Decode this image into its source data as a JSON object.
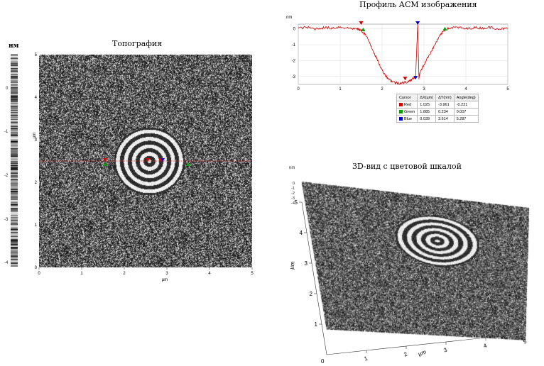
{
  "chart_data": [
    {
      "type": "heatmap",
      "title": "Топография",
      "xlabel": "µm",
      "ylabel": "µm",
      "xlim": [
        0,
        5
      ],
      "ylim": [
        0,
        5
      ],
      "x_ticks": [
        "0",
        "1",
        "2",
        "3",
        "4",
        "5"
      ],
      "y_ticks": [
        "0",
        "1",
        "2",
        "3",
        "4",
        "5"
      ],
      "colorbar": {
        "unit": "нм",
        "ticks": [
          "0",
          "-1",
          "-2",
          "-3",
          "-4"
        ]
      },
      "profile_line_y": 2.5,
      "markers": [
        {
          "color": "#d00000",
          "x": 1.55,
          "y": 2.5
        },
        {
          "color": "#00a000",
          "x": 1.55,
          "y": 2.4
        },
        {
          "color": "#d00000",
          "x": 2.55,
          "y": 2.5
        },
        {
          "color": "#d00000",
          "x": 2.85,
          "y": 2.5
        },
        {
          "color": "#0000c0",
          "x": 2.9,
          "y": 2.5
        },
        {
          "color": "#00a000",
          "x": 3.5,
          "y": 2.4
        }
      ]
    },
    {
      "type": "line",
      "title": "Профиль АСМ изображения",
      "xlabel": "µm",
      "ylabel": "nm",
      "xlim": [
        0,
        5
      ],
      "ylim": [
        -3.5,
        0.3
      ],
      "x_ticks": [
        "0",
        "1",
        "2",
        "3",
        "4",
        "5"
      ],
      "y_ticks": [
        "0",
        "-1",
        "-2",
        "-3"
      ],
      "series": [
        {
          "color": "#d00000",
          "x": [
            0,
            0.2,
            0.4,
            0.6,
            0.8,
            1.0,
            1.2,
            1.4,
            1.5,
            1.6,
            1.7,
            1.8,
            1.9,
            2.0,
            2.1,
            2.2,
            2.3,
            2.4,
            2.5,
            2.6,
            2.7,
            2.8,
            2.85,
            2.88,
            2.9,
            3.0,
            3.1,
            3.2,
            3.3,
            3.4,
            3.5,
            3.6,
            3.8,
            4.0,
            4.2,
            4.4,
            4.6,
            4.8,
            5.0
          ],
          "y": [
            0.05,
            0.1,
            0.0,
            0.08,
            0.05,
            0.12,
            0.05,
            0.0,
            -0.1,
            -0.35,
            -0.85,
            -1.45,
            -2.05,
            -2.6,
            -3.0,
            -3.25,
            -3.38,
            -3.42,
            -3.4,
            -3.35,
            -3.2,
            -3.05,
            0.35,
            -3.1,
            -2.8,
            -2.25,
            -1.75,
            -1.3,
            -0.8,
            -0.35,
            -0.05,
            0.05,
            0.1,
            0.0,
            0.08,
            0.05,
            0.1,
            0.0,
            0.02
          ]
        }
      ],
      "markers": [
        {
          "color": "#d00000",
          "x": 1.5,
          "y": 0.3
        },
        {
          "color": "#00a000",
          "x": 1.55,
          "y": -0.1
        },
        {
          "color": "#d00000",
          "x": 2.55,
          "y": -3.2
        },
        {
          "color": "#0000c0",
          "x": 2.85,
          "y": 0.3
        },
        {
          "color": "#0000c0",
          "x": 2.8,
          "y": -3.15
        },
        {
          "color": "#00a000",
          "x": 3.5,
          "y": -0.05
        }
      ],
      "cursor_table": {
        "headers": [
          "Cursor",
          "ΔX(µm)",
          "ΔY(nm)",
          "Angle(deg)"
        ],
        "rows": [
          {
            "color": "#d00000",
            "name": "Red",
            "dx": "1.025",
            "dy": "-3.961",
            "angle": "-0.221"
          },
          {
            "color": "#00a000",
            "name": "Green",
            "dx": "1.885",
            "dy": "0.234",
            "angle": "0.007"
          },
          {
            "color": "#0000c0",
            "name": "Blue",
            "dx": "0.039",
            "dy": "3.614",
            "angle": "5.287"
          }
        ]
      }
    },
    {
      "type": "heatmap",
      "title": "3D-вид с цветовой шкалой",
      "zlabel": "nm",
      "z_ticks": [
        "0",
        "-1",
        "-2",
        "-3",
        "-4"
      ],
      "axis_label_y": "µm",
      "axis_label_x": "µm",
      "y_ticks": [
        "0",
        "1",
        "2",
        "3",
        "4",
        "5"
      ],
      "x_ticks": [
        "1",
        "2",
        "3",
        "4",
        "5"
      ],
      "origin_label": "0"
    }
  ]
}
